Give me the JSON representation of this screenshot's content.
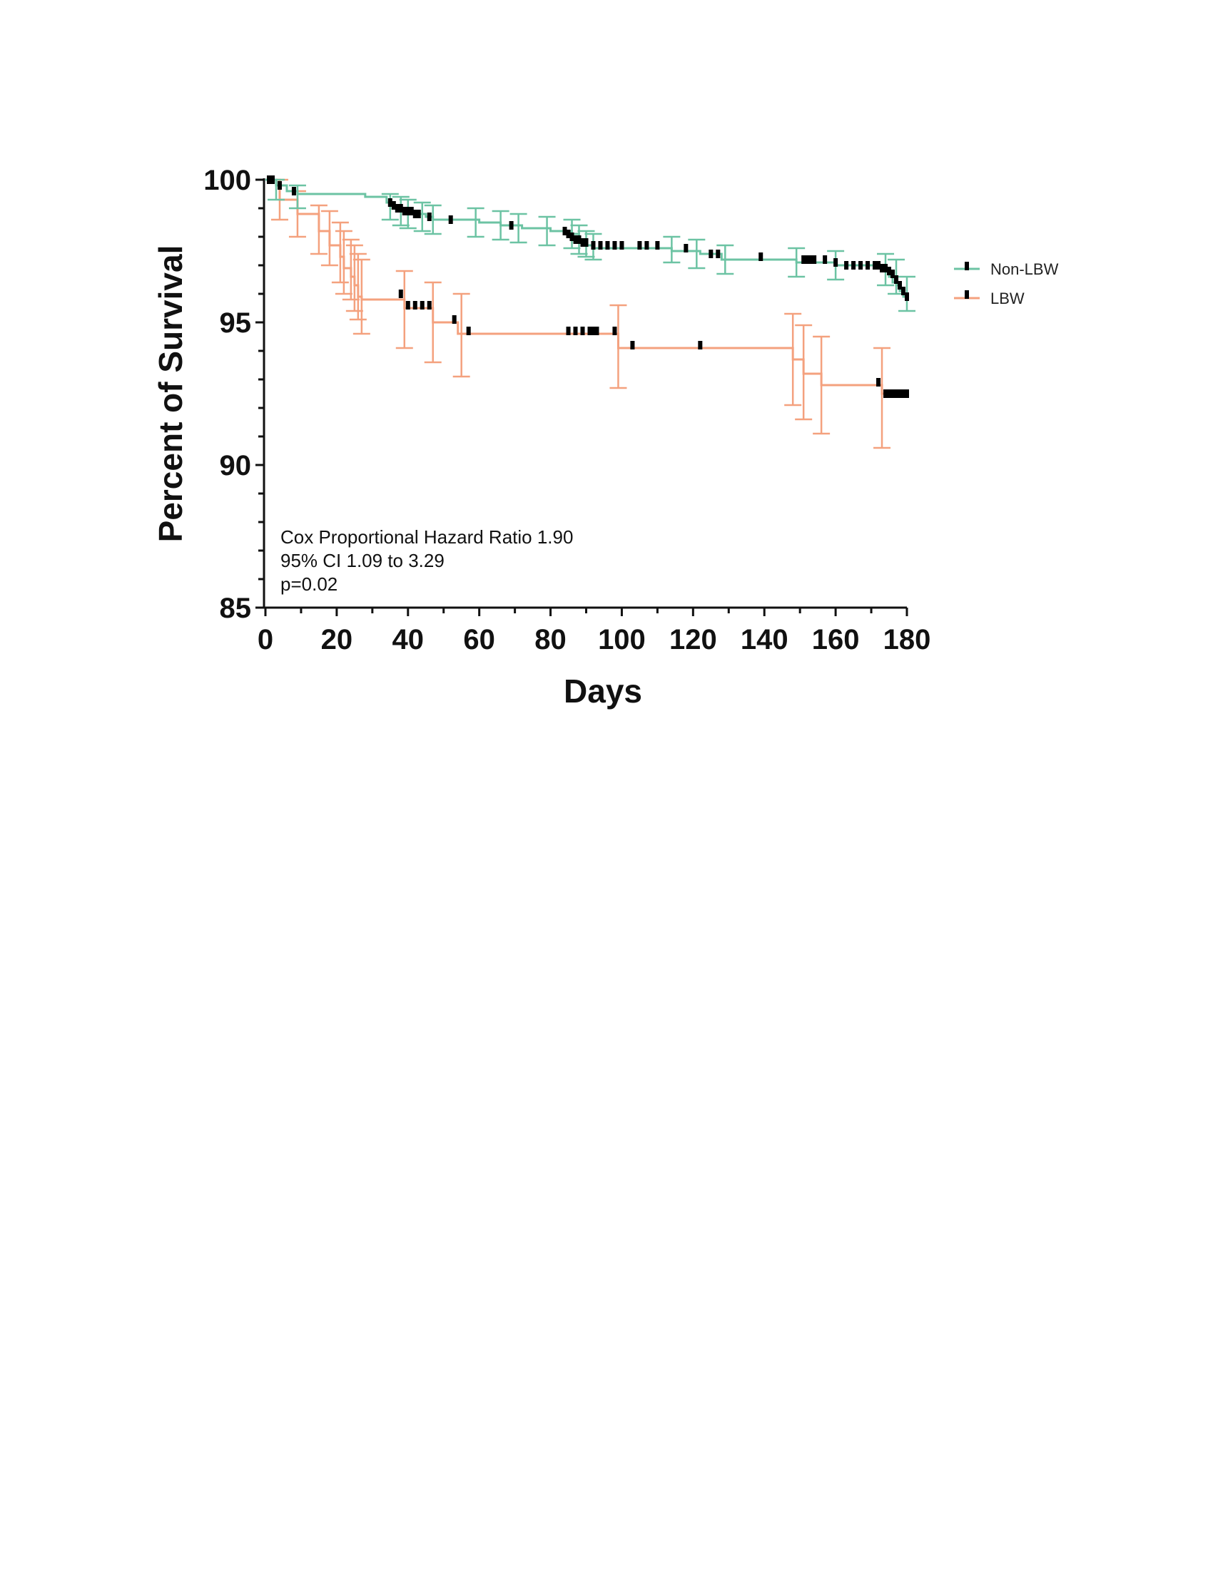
{
  "chart_data": {
    "type": "line",
    "xlabel": "Days",
    "ylabel": "Percent of Survival",
    "xlim": [
      0,
      180
    ],
    "ylim": [
      85,
      100
    ],
    "x_ticks": [
      "0",
      "20",
      "40",
      "60",
      "80",
      "100",
      "120",
      "140",
      "160",
      "180"
    ],
    "y_ticks": [
      "85",
      "90",
      "95",
      "100"
    ],
    "grid": false,
    "legend_position": "right",
    "annotation": [
      "Cox Proportional Hazard Ratio 1.90",
      "95% CI 1.09 to 3.29",
      "p=0.02"
    ],
    "series": [
      {
        "name": "Non-LBW",
        "color": "#6cc3a3",
        "steps": [
          [
            0,
            100
          ],
          [
            3,
            99.8
          ],
          [
            6,
            99.6
          ],
          [
            9,
            99.5
          ],
          [
            28,
            99.4
          ],
          [
            34,
            99.2
          ],
          [
            36,
            99.0
          ],
          [
            38,
            98.9
          ],
          [
            42,
            98.8
          ],
          [
            45,
            98.7
          ],
          [
            47,
            98.6
          ],
          [
            60,
            98.5
          ],
          [
            66,
            98.4
          ],
          [
            72,
            98.3
          ],
          [
            80,
            98.2
          ],
          [
            86,
            98.1
          ],
          [
            88,
            97.9
          ],
          [
            89,
            97.8
          ],
          [
            90,
            97.7
          ],
          [
            92,
            97.6
          ],
          [
            114,
            97.5
          ],
          [
            122,
            97.4
          ],
          [
            128,
            97.2
          ],
          [
            149,
            97.1
          ],
          [
            160,
            97.0
          ],
          [
            173,
            96.9
          ],
          [
            174,
            96.8
          ],
          [
            175,
            96.6
          ],
          [
            176,
            96.4
          ],
          [
            177,
            96.3
          ],
          [
            178,
            96.1
          ],
          [
            179,
            95.9
          ],
          [
            180,
            95.8
          ]
        ],
        "error_bars": [
          [
            3,
            99.3,
            100
          ],
          [
            9,
            99.0,
            99.8
          ],
          [
            35,
            98.6,
            99.5
          ],
          [
            38,
            98.4,
            99.4
          ],
          [
            40,
            98.3,
            99.3
          ],
          [
            44,
            98.2,
            99.2
          ],
          [
            47,
            98.1,
            99.1
          ],
          [
            59,
            98.0,
            99.0
          ],
          [
            66,
            97.9,
            98.9
          ],
          [
            71,
            97.8,
            98.8
          ],
          [
            79,
            97.7,
            98.7
          ],
          [
            86,
            97.6,
            98.6
          ],
          [
            88,
            97.4,
            98.4
          ],
          [
            90,
            97.3,
            98.2
          ],
          [
            92,
            97.2,
            98.1
          ],
          [
            114,
            97.1,
            98.0
          ],
          [
            121,
            96.9,
            97.9
          ],
          [
            129,
            96.7,
            97.7
          ],
          [
            149,
            96.6,
            97.6
          ],
          [
            160,
            96.5,
            97.5
          ],
          [
            174,
            96.3,
            97.4
          ],
          [
            177,
            96.0,
            97.2
          ],
          [
            180,
            95.4,
            96.6
          ]
        ],
        "censored": [
          [
            1,
            100
          ],
          [
            2,
            100
          ],
          [
            4,
            99.8
          ],
          [
            8,
            99.6
          ],
          [
            35,
            99.2
          ],
          [
            36,
            99.1
          ],
          [
            37,
            99.0
          ],
          [
            38,
            99.0
          ],
          [
            39,
            98.9
          ],
          [
            40,
            98.9
          ],
          [
            41,
            98.9
          ],
          [
            42,
            98.8
          ],
          [
            43,
            98.8
          ],
          [
            46,
            98.7
          ],
          [
            52,
            98.6
          ],
          [
            69,
            98.4
          ],
          [
            84,
            98.2
          ],
          [
            85,
            98.1
          ],
          [
            86,
            98.0
          ],
          [
            87,
            97.9
          ],
          [
            88,
            97.9
          ],
          [
            89,
            97.8
          ],
          [
            90,
            97.8
          ],
          [
            92,
            97.7
          ],
          [
            94,
            97.7
          ],
          [
            96,
            97.7
          ],
          [
            98,
            97.7
          ],
          [
            100,
            97.7
          ],
          [
            105,
            97.7
          ],
          [
            107,
            97.7
          ],
          [
            110,
            97.7
          ],
          [
            118,
            97.6
          ],
          [
            125,
            97.4
          ],
          [
            127,
            97.4
          ],
          [
            139,
            97.3
          ],
          [
            151,
            97.2
          ],
          [
            152,
            97.2
          ],
          [
            153,
            97.2
          ],
          [
            154,
            97.2
          ],
          [
            157,
            97.2
          ],
          [
            160,
            97.1
          ],
          [
            163,
            97.0
          ],
          [
            165,
            97.0
          ],
          [
            167,
            97.0
          ],
          [
            169,
            97.0
          ],
          [
            171,
            97.0
          ],
          [
            172,
            97.0
          ],
          [
            173,
            96.9
          ],
          [
            174,
            96.9
          ],
          [
            175,
            96.8
          ],
          [
            176,
            96.7
          ],
          [
            177,
            96.5
          ],
          [
            178,
            96.3
          ],
          [
            179,
            96.1
          ],
          [
            180,
            95.9
          ]
        ]
      },
      {
        "name": "LBW",
        "color": "#f4a17e",
        "steps": [
          [
            0,
            100
          ],
          [
            4,
            99.3
          ],
          [
            9,
            98.8
          ],
          [
            15,
            98.2
          ],
          [
            18,
            97.7
          ],
          [
            21,
            97.3
          ],
          [
            22,
            96.9
          ],
          [
            24,
            96.6
          ],
          [
            25,
            96.3
          ],
          [
            26,
            95.9
          ],
          [
            27,
            95.8
          ],
          [
            39,
            95.5
          ],
          [
            47,
            95.0
          ],
          [
            54,
            94.6
          ],
          [
            99,
            94.1
          ],
          [
            148,
            93.7
          ],
          [
            151,
            93.2
          ],
          [
            156,
            92.8
          ],
          [
            173,
            92.5
          ],
          [
            180,
            92.5
          ]
        ],
        "error_bars": [
          [
            4,
            98.6,
            100
          ],
          [
            9,
            98.0,
            99.6
          ],
          [
            15,
            97.4,
            99.1
          ],
          [
            18,
            97.0,
            98.9
          ],
          [
            21,
            96.4,
            98.5
          ],
          [
            22,
            96.0,
            98.2
          ],
          [
            24,
            95.8,
            97.9
          ],
          [
            25,
            95.4,
            97.7
          ],
          [
            26,
            95.1,
            97.4
          ],
          [
            27,
            94.6,
            97.2
          ],
          [
            39,
            94.1,
            96.8
          ],
          [
            47,
            93.6,
            96.4
          ],
          [
            55,
            93.1,
            96.0
          ],
          [
            99,
            92.7,
            95.6
          ],
          [
            148,
            92.1,
            95.3
          ],
          [
            151,
            91.6,
            94.9
          ],
          [
            156,
            91.1,
            94.5
          ],
          [
            173,
            90.6,
            94.1
          ]
        ],
        "censored": [
          [
            2,
            100
          ],
          [
            38,
            96.0
          ],
          [
            40,
            95.6
          ],
          [
            42,
            95.6
          ],
          [
            44,
            95.6
          ],
          [
            46,
            95.6
          ],
          [
            53,
            95.1
          ],
          [
            57,
            94.7
          ],
          [
            85,
            94.7
          ],
          [
            87,
            94.7
          ],
          [
            89,
            94.7
          ],
          [
            91,
            94.7
          ],
          [
            92,
            94.7
          ],
          [
            93,
            94.7
          ],
          [
            98,
            94.7
          ],
          [
            103,
            94.2
          ],
          [
            122,
            94.2
          ],
          [
            172,
            92.9
          ],
          [
            174,
            92.5
          ],
          [
            175,
            92.5
          ],
          [
            176,
            92.5
          ],
          [
            177,
            92.5
          ],
          [
            178,
            92.5
          ],
          [
            179,
            92.5
          ],
          [
            180,
            92.5
          ]
        ]
      }
    ]
  }
}
